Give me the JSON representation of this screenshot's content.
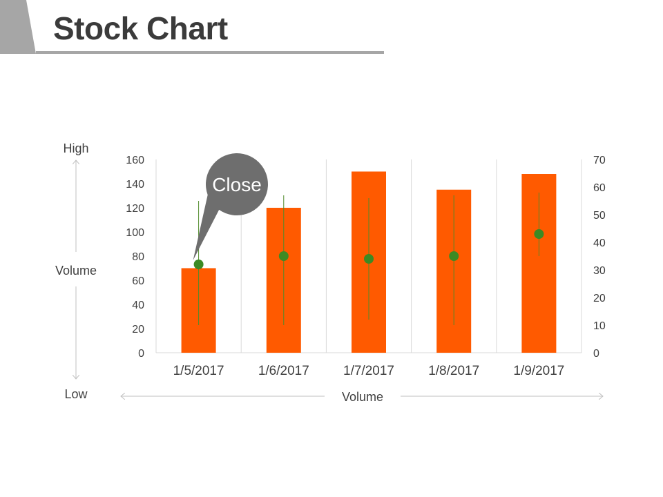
{
  "page": {
    "title": "Stock Chart"
  },
  "chart_data": {
    "type": "bar",
    "categories": [
      "1/5/2017",
      "1/6/2017",
      "1/7/2017",
      "1/8/2017",
      "1/9/2017"
    ],
    "series": [
      {
        "name": "",
        "axis": "left",
        "kind": "bar",
        "values": [
          70,
          120,
          150,
          135,
          148
        ]
      }
    ],
    "stock": {
      "axis": "right",
      "high": [
        55,
        57,
        56,
        57,
        58
      ],
      "low": [
        10,
        10,
        12,
        10,
        35
      ],
      "close": [
        32,
        35,
        34,
        35,
        43
      ]
    },
    "y_left": {
      "min": 0,
      "max": 160,
      "ticks": [
        0,
        20,
        40,
        60,
        80,
        100,
        120,
        140,
        160
      ]
    },
    "y_right": {
      "min": 0,
      "max": 70,
      "ticks": [
        0,
        10,
        20,
        30,
        40,
        50,
        60,
        70
      ]
    },
    "side_labels": {
      "top": "High",
      "middle": "Volume",
      "bottom": "Low"
    },
    "xlabel": "Volume",
    "callout": {
      "text": "Close",
      "target_index": 0
    },
    "grid": "vertical",
    "colors": {
      "bar": "#ff5a00",
      "marker": "#3c8a24",
      "stem": "#4f8a2a",
      "grid": "#d9d9d9",
      "arrow": "#bfbfbf",
      "callout": "#6e6e6e"
    }
  }
}
